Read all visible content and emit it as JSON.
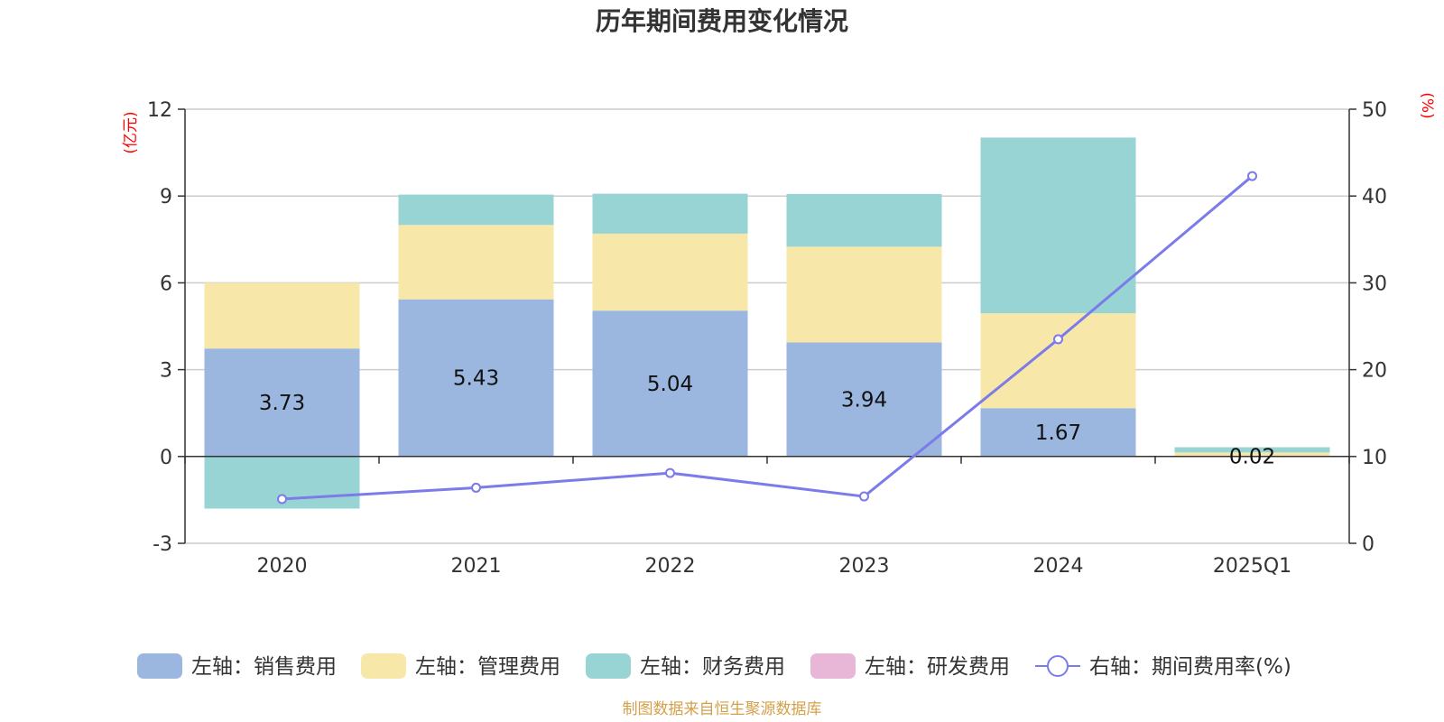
{
  "chart_data": {
    "type": "bar",
    "title": "历年期间费用变化情况",
    "categories": [
      "2020",
      "2021",
      "2022",
      "2023",
      "2024",
      "2025Q1"
    ],
    "left_axis": {
      "unit": "(亿元)",
      "min": -3,
      "max": 12,
      "ticks": [
        "-3",
        "0",
        "3",
        "6",
        "9",
        "12"
      ],
      "tick_values": [
        -3,
        0,
        3,
        6,
        9,
        12
      ]
    },
    "right_axis": {
      "unit": "(%)",
      "min": 0,
      "max": 50,
      "ticks": [
        "0",
        "10",
        "20",
        "30",
        "40",
        "50"
      ],
      "tick_values": [
        0,
        10,
        20,
        30,
        40,
        50
      ]
    },
    "series": [
      {
        "name": "左轴：销售费用",
        "axis": "left",
        "kind": "bar",
        "color": "#9bb7e0",
        "values": [
          3.73,
          5.43,
          5.04,
          3.94,
          1.67,
          0.02
        ],
        "labels": [
          "3.73",
          "5.43",
          "5.04",
          "3.94",
          "1.67",
          "0.02"
        ]
      },
      {
        "name": "左轴：管理费用",
        "axis": "left",
        "kind": "bar",
        "color": "#f7e8a9",
        "values": [
          2.27,
          2.57,
          2.66,
          3.31,
          3.28,
          0.12
        ]
      },
      {
        "name": "左轴：财务费用",
        "axis": "left",
        "kind": "bar",
        "color": "#98d4d4",
        "values": [
          -1.8,
          1.05,
          1.38,
          1.82,
          6.07,
          0.18
        ]
      },
      {
        "name": "左轴：研发费用",
        "axis": "left",
        "kind": "bar",
        "color": "#e8b7d8",
        "values": [
          0,
          0,
          0,
          0,
          0,
          0
        ]
      },
      {
        "name": "右轴：期间费用率(%)",
        "axis": "right",
        "kind": "line",
        "color": "#7b7bea",
        "values": [
          5.1,
          6.4,
          8.1,
          5.4,
          23.5,
          42.3
        ]
      }
    ],
    "grid": true,
    "legend_position": "bottom"
  },
  "source": "制图数据来自恒生聚源数据库",
  "colors": {
    "unit_label": "#ff0000",
    "source_text": "#d4a04a",
    "grid": "#cccccc",
    "axis": "#333333"
  }
}
